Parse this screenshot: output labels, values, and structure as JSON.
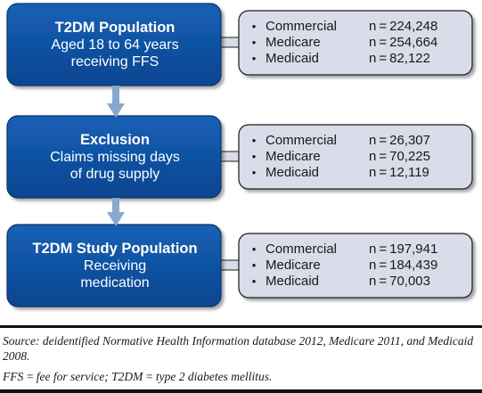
{
  "stages": [
    {
      "title": "T2DM Population",
      "lines": [
        "Aged 18 to 64 years",
        "receiving FFS"
      ],
      "counts": [
        {
          "label": "Commercial",
          "value": "n = 224,248"
        },
        {
          "label": "Medicare",
          "value": "n = 254,664"
        },
        {
          "label": "Medicaid",
          "value": "n = 82,122"
        }
      ]
    },
    {
      "title": "Exclusion",
      "lines": [
        "Claims missing days",
        "of drug supply"
      ],
      "counts": [
        {
          "label": "Commercial",
          "value": "n = 26,307"
        },
        {
          "label": "Medicare",
          "value": "n = 70,225"
        },
        {
          "label": "Medicaid",
          "value": "n = 12,119"
        }
      ]
    },
    {
      "title": "T2DM Study Population",
      "lines": [
        "Receiving",
        "medication"
      ],
      "counts": [
        {
          "label": "Commercial",
          "value": "n = 197,941"
        },
        {
          "label": "Medicare",
          "value": "n = 184,439"
        },
        {
          "label": "Medicaid",
          "value": "n = 70,003"
        }
      ]
    }
  ],
  "bullet_char": "•",
  "footer": {
    "source": "Source: deidentified Normative Health Information database 2012, Medicare 2011, and Medicaid 2008.",
    "abbreviations": "FFS = fee for service; T2DM = type 2 diabetes mellitus."
  },
  "colors": {
    "stage_box_fill": "#0e4f9c",
    "stage_box_border": "#08306a",
    "count_box_fill": "#d9dce9",
    "count_box_border": "#1c1c1c",
    "arrow": "#8aa7d1"
  }
}
